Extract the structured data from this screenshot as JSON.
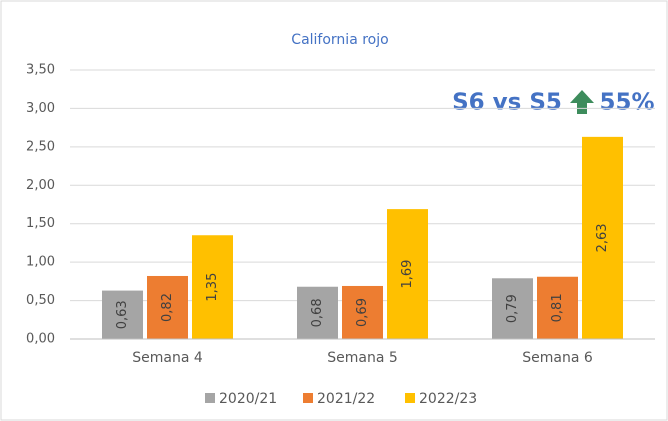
{
  "chart_data": {
    "type": "bar",
    "title": "California rojo",
    "categories": [
      "Semana 4",
      "Semana 5",
      "Semana 6"
    ],
    "series": [
      {
        "name": "2020/21",
        "color": "#a5a5a5",
        "values": [
          0.63,
          0.68,
          0.79
        ],
        "value_labels": [
          "0,63",
          "0,68",
          "0,79"
        ]
      },
      {
        "name": "2021/22",
        "color": "#ed7d31",
        "values": [
          0.82,
          0.69,
          0.81
        ],
        "value_labels": [
          "0,82",
          "0,69",
          "0,81"
        ]
      },
      {
        "name": "2022/23",
        "color": "#ffc000",
        "values": [
          1.35,
          1.69,
          2.63
        ],
        "value_labels": [
          "1,35",
          "1,69",
          "2,63"
        ]
      }
    ],
    "ylim": [
      0,
      3.5
    ],
    "yticks": [
      {
        "value": 0,
        "label": "0,00"
      },
      {
        "value": 0.5,
        "label": "0,50"
      },
      {
        "value": 1,
        "label": "1,00"
      },
      {
        "value": 1.5,
        "label": "1,50"
      },
      {
        "value": 2,
        "label": "2,00"
      },
      {
        "value": 2.5,
        "label": "2,50"
      },
      {
        "value": 3,
        "label": "3,00"
      },
      {
        "value": 3.5,
        "label": "3,50"
      }
    ],
    "grid": true,
    "legend": "bottom",
    "annotations": [
      "S6 vs S5",
      "55%"
    ]
  }
}
